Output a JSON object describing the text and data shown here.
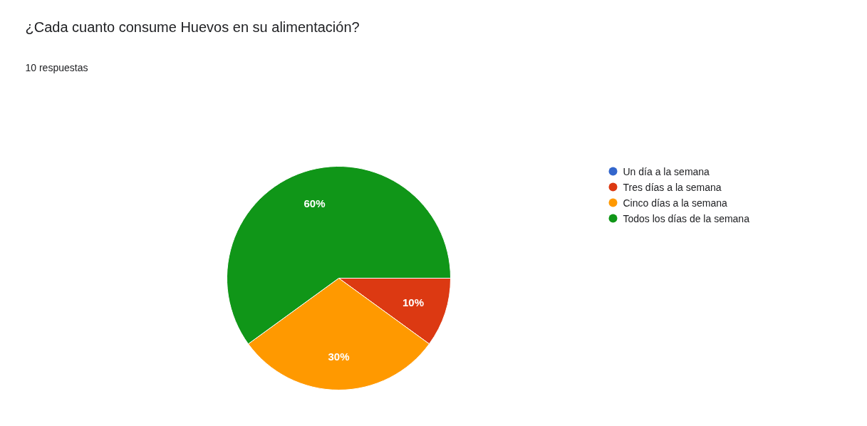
{
  "chart_data": {
    "type": "pie",
    "title": "¿Cada cuanto consume Huevos en su alimentación?",
    "subtitle": "10 respuestas",
    "categories": [
      "Un día a la semana",
      "Tres días a la semana",
      "Cinco días a la semana",
      "Todos los días de la semana"
    ],
    "values": [
      0,
      10,
      30,
      60
    ],
    "colors": [
      "#3366cc",
      "#dc3912",
      "#ff9900",
      "#109618"
    ],
    "value_labels": [
      null,
      "10%",
      "30%",
      "60%"
    ],
    "legend": "right"
  }
}
